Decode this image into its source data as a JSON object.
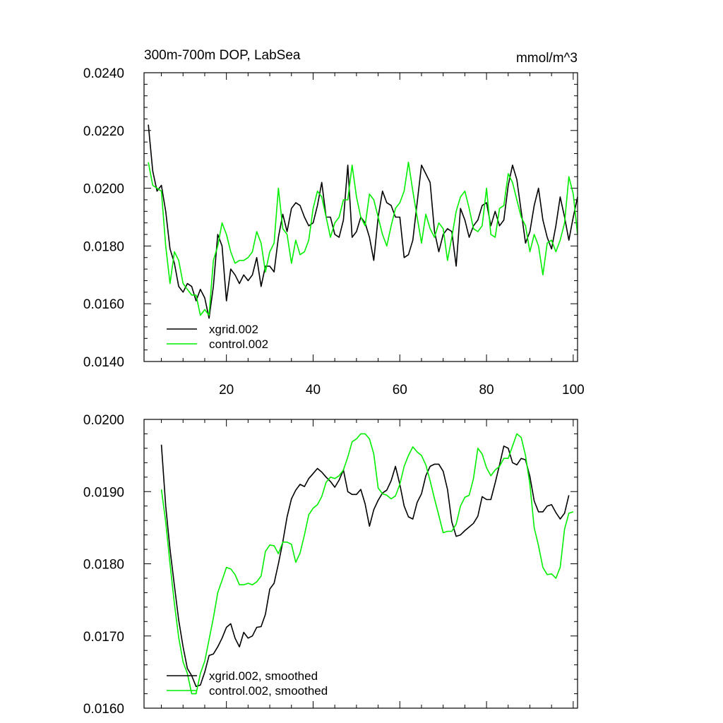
{
  "chart_data": [
    {
      "type": "line",
      "title": "300m-700m DOP, LabSea",
      "units": "mmol/m^3",
      "xlim": [
        1,
        101
      ],
      "ylim": [
        0.014,
        0.024
      ],
      "x_ticks": [
        20,
        40,
        60,
        80,
        100
      ],
      "y_ticks": [
        "0.0140",
        "0.0160",
        "0.0180",
        "0.0200",
        "0.0220",
        "0.0240"
      ],
      "legend_position": "bottom-left",
      "x_start": 2,
      "series": [
        {
          "name": "xgrid.002",
          "color": "#000000",
          "values": [
            0.0222,
            0.0206,
            0.0199,
            0.0201,
            0.0192,
            0.0179,
            0.0174,
            0.0166,
            0.0164,
            0.0167,
            0.0166,
            0.0161,
            0.0165,
            0.0162,
            0.0155,
            0.0166,
            0.0184,
            0.018,
            0.0161,
            0.0172,
            0.017,
            0.0167,
            0.017,
            0.0168,
            0.017,
            0.0176,
            0.0166,
            0.0173,
            0.0173,
            0.0171,
            0.0183,
            0.0191,
            0.0185,
            0.0193,
            0.0195,
            0.0194,
            0.019,
            0.0187,
            0.0188,
            0.0194,
            0.0202,
            0.019,
            0.019,
            0.0184,
            0.0183,
            0.0189,
            0.0208,
            0.0183,
            0.0185,
            0.019,
            0.0188,
            0.0183,
            0.0175,
            0.019,
            0.0199,
            0.0195,
            0.0194,
            0.019,
            0.019,
            0.0176,
            0.0177,
            0.0182,
            0.0195,
            0.0208,
            0.0205,
            0.0202,
            0.0185,
            0.0178,
            0.0184,
            0.0186,
            0.0185,
            0.0173,
            0.0193,
            0.0189,
            0.0183,
            0.0187,
            0.0189,
            0.0194,
            0.0195,
            0.0187,
            0.0192,
            0.0187,
            0.0189,
            0.0201,
            0.0208,
            0.0203,
            0.0192,
            0.0181,
            0.0185,
            0.0194,
            0.02,
            0.0189,
            0.0183,
            0.0179,
            0.0187,
            0.0197,
            0.019,
            0.0182,
            0.019,
            0.0197
          ]
        },
        {
          "name": "control.002",
          "color": "#00ee00",
          "values": [
            0.0209,
            0.0201,
            0.02,
            0.0199,
            0.018,
            0.0167,
            0.0178,
            0.0175,
            0.0167,
            0.0165,
            0.0163,
            0.0163,
            0.0156,
            0.0158,
            0.0156,
            0.0175,
            0.018,
            0.0188,
            0.0184,
            0.0178,
            0.0174,
            0.0175,
            0.0175,
            0.0176,
            0.0178,
            0.0185,
            0.0181,
            0.0171,
            0.0178,
            0.0181,
            0.02,
            0.0186,
            0.0184,
            0.0174,
            0.0182,
            0.0177,
            0.0178,
            0.0182,
            0.0193,
            0.0199,
            0.0197,
            0.019,
            0.0183,
            0.0188,
            0.019,
            0.0196,
            0.0196,
            0.0208,
            0.0197,
            0.019,
            0.0187,
            0.0198,
            0.0196,
            0.019,
            0.0184,
            0.018,
            0.0187,
            0.0193,
            0.0195,
            0.0199,
            0.0209,
            0.0199,
            0.019,
            0.0181,
            0.0191,
            0.0186,
            0.0183,
            0.0188,
            0.0186,
            0.0175,
            0.0183,
            0.0192,
            0.0197,
            0.0199,
            0.0193,
            0.0186,
            0.0185,
            0.0187,
            0.02,
            0.0184,
            0.0183,
            0.0193,
            0.0194,
            0.0205,
            0.0202,
            0.0196,
            0.019,
            0.0187,
            0.0178,
            0.0184,
            0.018,
            0.017,
            0.0181,
            0.0182,
            0.0178,
            0.0182,
            0.0188,
            0.0204,
            0.0198,
            0.0184
          ]
        }
      ]
    },
    {
      "type": "line",
      "title": "",
      "xlim": [
        1,
        101
      ],
      "ylim": [
        0.016,
        0.02
      ],
      "x_ticks": [
        20,
        40,
        60,
        80,
        100
      ],
      "show_x_labels": false,
      "y_ticks": [
        "0.0160",
        "0.0170",
        "0.0180",
        "0.0190",
        "0.0200"
      ],
      "legend_position": "bottom-left",
      "x_start": 5,
      "series": [
        {
          "name": "xgrid.002, smoothed",
          "color": "#000000",
          "values": [
            0.01965,
            0.0188,
            0.0182,
            0.0177,
            0.01722,
            0.01685,
            0.01655,
            0.01645,
            0.0163,
            0.01632,
            0.0165,
            0.01673,
            0.01675,
            0.01685,
            0.01697,
            0.01712,
            0.01717,
            0.01697,
            0.01685,
            0.01705,
            0.01697,
            0.017,
            0.01712,
            0.01713,
            0.0173,
            0.01765,
            0.01773,
            0.018,
            0.0183,
            0.01865,
            0.0189,
            0.01902,
            0.0191,
            0.01907,
            0.01918,
            0.01925,
            0.01932,
            0.01927,
            0.0192,
            0.01914,
            0.01906,
            0.01916,
            0.0193,
            0.019,
            0.01896,
            0.01896,
            0.01903,
            0.01883,
            0.01852,
            0.01875,
            0.01888,
            0.01898,
            0.01902,
            0.01915,
            0.01935,
            0.0191,
            0.0188,
            0.01865,
            0.01862,
            0.01885,
            0.01897,
            0.01922,
            0.01935,
            0.01938,
            0.01938,
            0.01928,
            0.01903,
            0.01858,
            0.01838,
            0.0184,
            0.01846,
            0.01851,
            0.01856,
            0.01866,
            0.01893,
            0.01889,
            0.01889,
            0.01912,
            0.01937,
            0.01963,
            0.0196,
            0.0194,
            0.01937,
            0.01946,
            0.01944,
            0.01921,
            0.01887,
            0.01872,
            0.01872,
            0.0188,
            0.01882,
            0.01871,
            0.01862,
            0.0187,
            0.01895
          ]
        },
        {
          "name": "control.002, smoothed",
          "color": "#00ee00",
          "values": [
            0.01903,
            0.01858,
            0.018,
            0.01745,
            0.01698,
            0.01664,
            0.01648,
            0.0162,
            0.0162,
            0.01648,
            0.01665,
            0.01695,
            0.01725,
            0.0176,
            0.01777,
            0.01795,
            0.01793,
            0.01785,
            0.01771,
            0.01771,
            0.01773,
            0.01771,
            0.01775,
            0.01783,
            0.01817,
            0.01826,
            0.01825,
            0.01814,
            0.0183,
            0.0183,
            0.01827,
            0.01802,
            0.01815,
            0.0184,
            0.01868,
            0.01877,
            0.01882,
            0.01893,
            0.01913,
            0.0192,
            0.01918,
            0.01922,
            0.0193,
            0.01948,
            0.01969,
            0.01973,
            0.0198,
            0.0198,
            0.01973,
            0.01952,
            0.01905,
            0.01897,
            0.01895,
            0.0189,
            0.01894,
            0.0191,
            0.01935,
            0.0195,
            0.01962,
            0.01955,
            0.0195,
            0.01937,
            0.01915,
            0.0189,
            0.01867,
            0.01843,
            0.01845,
            0.01845,
            0.01855,
            0.0188,
            0.01892,
            0.01895,
            0.01918,
            0.0196,
            0.01952,
            0.01933,
            0.01922,
            0.0193,
            0.01935,
            0.01946,
            0.01946,
            0.01963,
            0.0198,
            0.01975,
            0.0195,
            0.0191,
            0.0185,
            0.01825,
            0.01795,
            0.01785,
            0.01786,
            0.0178,
            0.01795,
            0.01848,
            0.0187,
            0.01872
          ]
        }
      ]
    }
  ]
}
